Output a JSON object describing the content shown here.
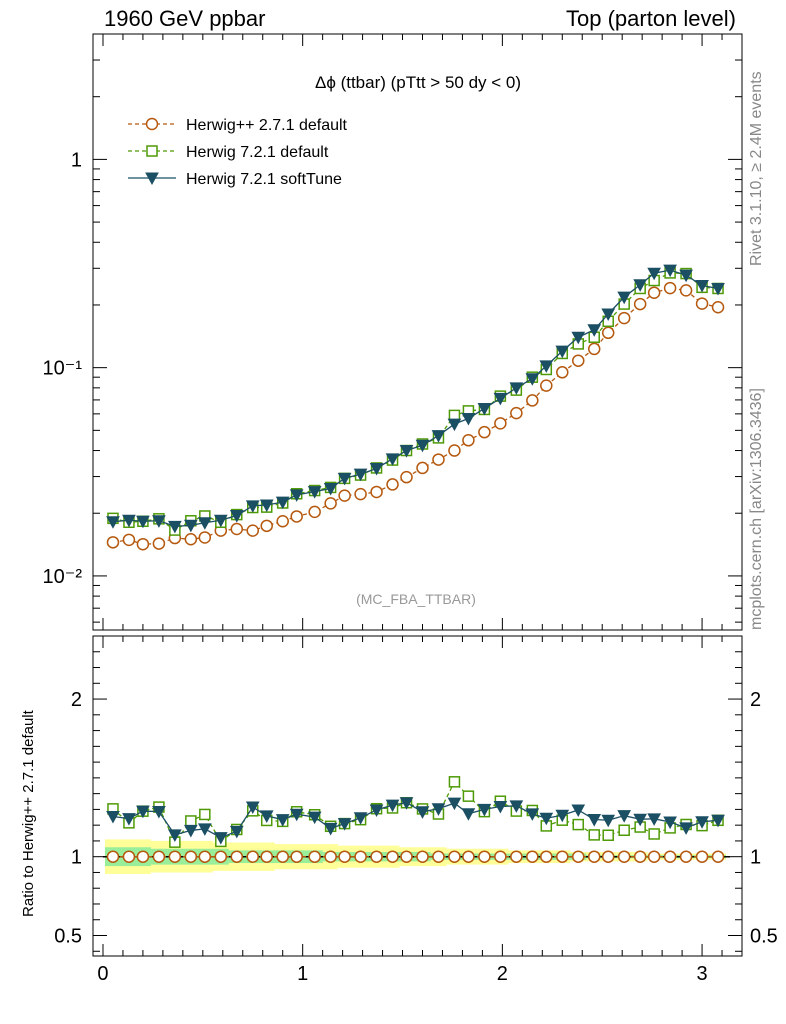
{
  "header": {
    "left": "1960 GeV ppbar",
    "right": "Top (parton level)",
    "side_top": "Rivet 3.1.10, ≥ 2.4M events",
    "side_bottom": "mcplots.cern.ch [arXiv:1306.3436]"
  },
  "chart_data": {
    "type": "line",
    "title": "Δϕ (ttbar) (pTtt > 50 dy < 0)",
    "watermark": "(MC_FBA_TTBAR)",
    "legend_position": "top-left",
    "xlim": [
      -0.05,
      3.2
    ],
    "ylim": [
      0.0055,
      4.0
    ],
    "yscale": "log",
    "x_ticks": [
      "0",
      "1",
      "2",
      "3"
    ],
    "y_ticks": [
      "10⁻²",
      "10⁻¹",
      "1"
    ],
    "ratio": {
      "ylabel": "Ratio to Herwig++ 2.7.1 default",
      "ylim": [
        0.37,
        2.4
      ],
      "y_ticks": [
        "0.5",
        "1",
        "2"
      ]
    },
    "x": [
      0.05,
      0.13,
      0.2,
      0.28,
      0.36,
      0.44,
      0.51,
      0.59,
      0.67,
      0.75,
      0.82,
      0.9,
      0.97,
      1.06,
      1.14,
      1.21,
      1.29,
      1.37,
      1.45,
      1.52,
      1.6,
      1.68,
      1.76,
      1.83,
      1.91,
      1.99,
      2.07,
      2.15,
      2.22,
      2.3,
      2.38,
      2.46,
      2.53,
      2.61,
      2.69,
      2.76,
      2.84,
      2.92,
      3.0,
      3.08
    ],
    "series": [
      {
        "name": "Herwig++ 2.7.1 default",
        "color": "#b5590f",
        "marker": "circle-open",
        "line": "dashed",
        "values": [
          0.0145,
          0.0149,
          0.0142,
          0.0143,
          0.0152,
          0.015,
          0.0153,
          0.0165,
          0.0168,
          0.0165,
          0.0174,
          0.0183,
          0.0193,
          0.0203,
          0.0223,
          0.0243,
          0.0247,
          0.0253,
          0.0275,
          0.0298,
          0.033,
          0.0362,
          0.04,
          0.0448,
          0.049,
          0.054,
          0.0605,
          0.0696,
          0.082,
          0.095,
          0.108,
          0.123,
          0.147,
          0.173,
          0.202,
          0.229,
          0.241,
          0.235,
          0.203,
          0.195
        ]
      },
      {
        "name": "Herwig 7.2.1 default",
        "color": "#4e9a06",
        "marker": "square-open",
        "line": "dashed",
        "values": [
          0.0189,
          0.0181,
          0.0183,
          0.0188,
          0.0166,
          0.0184,
          0.0194,
          0.0181,
          0.0197,
          0.0213,
          0.0214,
          0.0224,
          0.0248,
          0.0257,
          0.0266,
          0.0294,
          0.0305,
          0.033,
          0.036,
          0.04,
          0.043,
          0.046,
          0.059,
          0.062,
          0.063,
          0.073,
          0.078,
          0.09,
          0.098,
          0.117,
          0.13,
          0.14,
          0.167,
          0.202,
          0.24,
          0.262,
          0.285,
          0.283,
          0.243,
          0.24
        ]
      },
      {
        "name": "Herwig 7.2.1 softTune",
        "color": "#1b4f63",
        "marker": "triangle-down-filled",
        "line": "solid",
        "values": [
          0.0182,
          0.0185,
          0.0183,
          0.0184,
          0.0173,
          0.0175,
          0.018,
          0.0185,
          0.0195,
          0.0217,
          0.0219,
          0.0226,
          0.0245,
          0.0254,
          0.0263,
          0.0294,
          0.0308,
          0.0328,
          0.0365,
          0.04,
          0.0424,
          0.0472,
          0.0536,
          0.057,
          0.0637,
          0.0712,
          0.08,
          0.0885,
          0.102,
          0.12,
          0.14,
          0.152,
          0.181,
          0.218,
          0.25,
          0.284,
          0.294,
          0.278,
          0.248,
          0.24
        ]
      }
    ],
    "ratio_band": {
      "inner": [
        0.94,
        0.94,
        0.94,
        0.95,
        0.95,
        0.95,
        0.95,
        0.95,
        0.96,
        0.96,
        0.96,
        0.96,
        0.96,
        0.96,
        0.97,
        0.97,
        0.97,
        0.97,
        0.97,
        0.97,
        0.97,
        0.98,
        0.98,
        0.98,
        0.98,
        0.98,
        0.98,
        0.98,
        0.98,
        0.98,
        0.98,
        0.99,
        0.99,
        0.99,
        0.99,
        0.99,
        0.99,
        0.99,
        0.99,
        0.99
      ],
      "outer": [
        0.89,
        0.89,
        0.89,
        0.9,
        0.9,
        0.9,
        0.9,
        0.91,
        0.91,
        0.91,
        0.91,
        0.92,
        0.92,
        0.92,
        0.92,
        0.93,
        0.93,
        0.93,
        0.93,
        0.94,
        0.94,
        0.94,
        0.95,
        0.95,
        0.95,
        0.95,
        0.96,
        0.96,
        0.96,
        0.96,
        0.97,
        0.97,
        0.97,
        0.97,
        0.97,
        0.98,
        0.98,
        0.98,
        0.98,
        0.98
      ]
    }
  }
}
